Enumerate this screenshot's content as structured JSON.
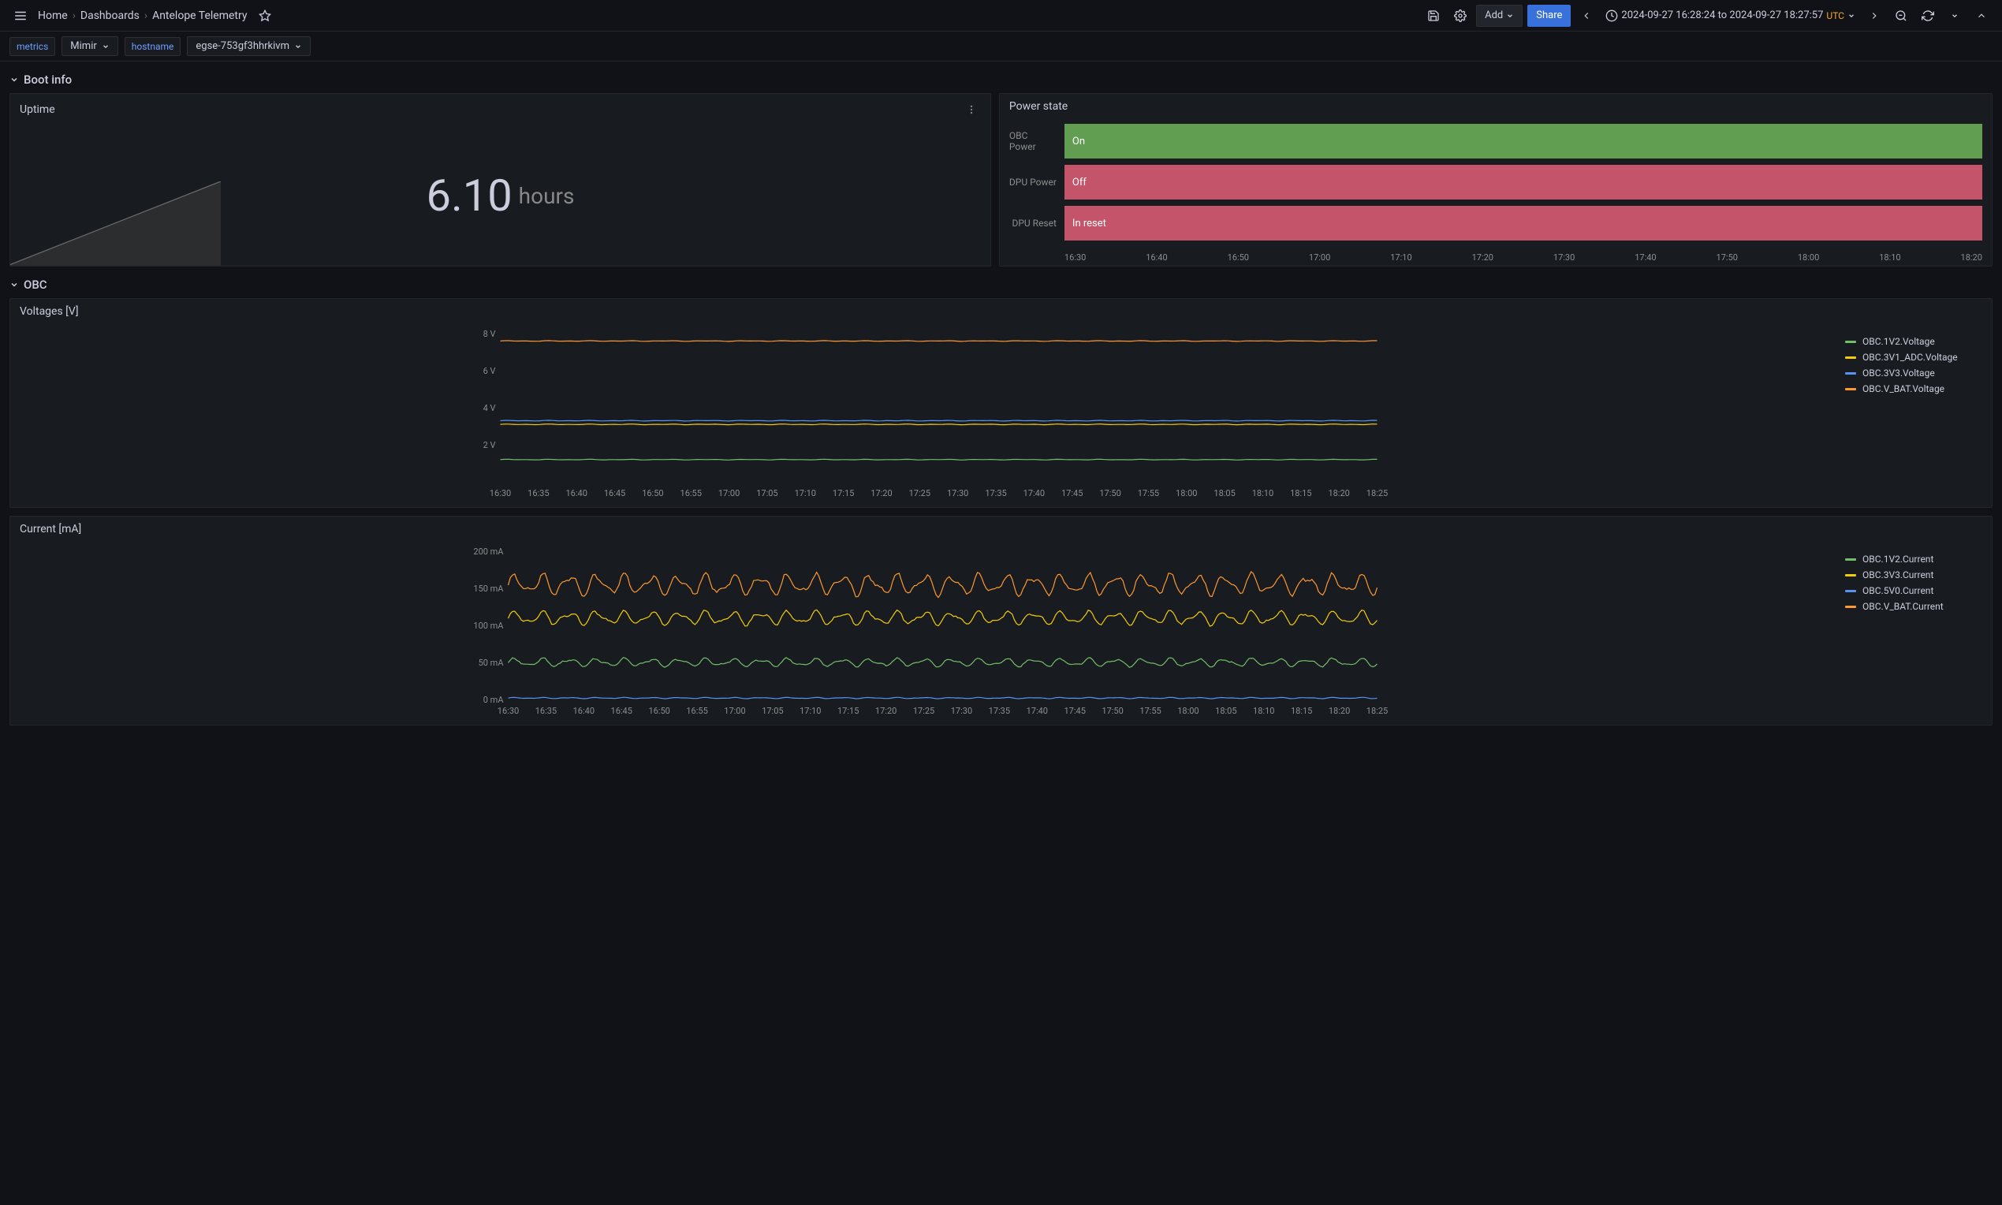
{
  "breadcrumb": {
    "home": "Home",
    "dashboards": "Dashboards",
    "page": "Antelope Telemetry"
  },
  "toolbar": {
    "add_label": "Add",
    "share_label": "Share",
    "time_range": "2024-09-27 16:28:24 to 2024-09-27 18:27:57",
    "tz": "UTC"
  },
  "variables": {
    "metrics_label": "metrics",
    "metrics_value": "Mimir",
    "hostname_label": "hostname",
    "hostname_value": "egse-753gf3hhrkivm"
  },
  "sections": {
    "boot_info": "Boot info",
    "obc": "OBC"
  },
  "uptime": {
    "title": "Uptime",
    "value": "6.10",
    "unit": "hours"
  },
  "power_state": {
    "title": "Power state",
    "rows": [
      {
        "label": "OBC Power",
        "value": "On",
        "color": "green"
      },
      {
        "label": "DPU Power",
        "value": "Off",
        "color": "red"
      },
      {
        "label": "DPU Reset",
        "value": "In reset",
        "color": "red"
      }
    ],
    "axis": [
      "16:30",
      "16:40",
      "16:50",
      "17:00",
      "17:10",
      "17:20",
      "17:30",
      "17:40",
      "17:50",
      "18:00",
      "18:10",
      "18:20"
    ]
  },
  "voltages": {
    "title": "Voltages [V]",
    "ylim": [
      0,
      8
    ],
    "yticks": [
      2,
      4,
      6,
      8
    ],
    "ytick_labels": [
      "2 V",
      "4 V",
      "6 V",
      "8 V"
    ],
    "xticks": [
      "16:30",
      "16:35",
      "16:40",
      "16:45",
      "16:50",
      "16:55",
      "17:00",
      "17:05",
      "17:10",
      "17:15",
      "17:20",
      "17:25",
      "17:30",
      "17:35",
      "17:40",
      "17:45",
      "17:50",
      "17:55",
      "18:00",
      "18:05",
      "18:10",
      "18:15",
      "18:20",
      "18:25"
    ],
    "series": [
      {
        "name": "OBC.1V2.Voltage",
        "color": "#73bf69",
        "value": 1.2
      },
      {
        "name": "OBC.3V1_ADC.Voltage",
        "color": "#f2cc0c",
        "value": 3.1
      },
      {
        "name": "OBC.3V3.Voltage",
        "color": "#5794f2",
        "value": 3.3
      },
      {
        "name": "OBC.V_BAT.Voltage",
        "color": "#ff9830",
        "value": 7.6
      }
    ]
  },
  "currents": {
    "title": "Current [mA]",
    "ylim": [
      0,
      200
    ],
    "yticks": [
      0,
      50,
      100,
      150,
      200
    ],
    "ytick_labels": [
      "0 mA",
      "50 mA",
      "100 mA",
      "150 mA",
      "200 mA"
    ],
    "xticks": [
      "16:30",
      "16:35",
      "16:40",
      "16:45",
      "16:50",
      "16:55",
      "17:00",
      "17:05",
      "17:10",
      "17:15",
      "17:20",
      "17:25",
      "17:30",
      "17:35",
      "17:40",
      "17:45",
      "17:50",
      "17:55",
      "18:00",
      "18:05",
      "18:10",
      "18:15",
      "18:20",
      "18:25"
    ],
    "series": [
      {
        "name": "OBC.1V2.Current",
        "color": "#73bf69",
        "base": 50,
        "amp": 7
      },
      {
        "name": "OBC.3V3.Current",
        "color": "#f2cc0c",
        "base": 110,
        "amp": 12
      },
      {
        "name": "OBC.5V0.Current",
        "color": "#5794f2",
        "base": 2,
        "amp": 1
      },
      {
        "name": "OBC.V_BAT.Current",
        "color": "#ff9830",
        "base": 155,
        "amp": 18
      }
    ]
  },
  "colors": {
    "bg": "#111217",
    "panel_bg": "#181b1f",
    "grid": "#2d2f34",
    "text": "#ccccdc",
    "text_dim": "#8e8e8e"
  }
}
